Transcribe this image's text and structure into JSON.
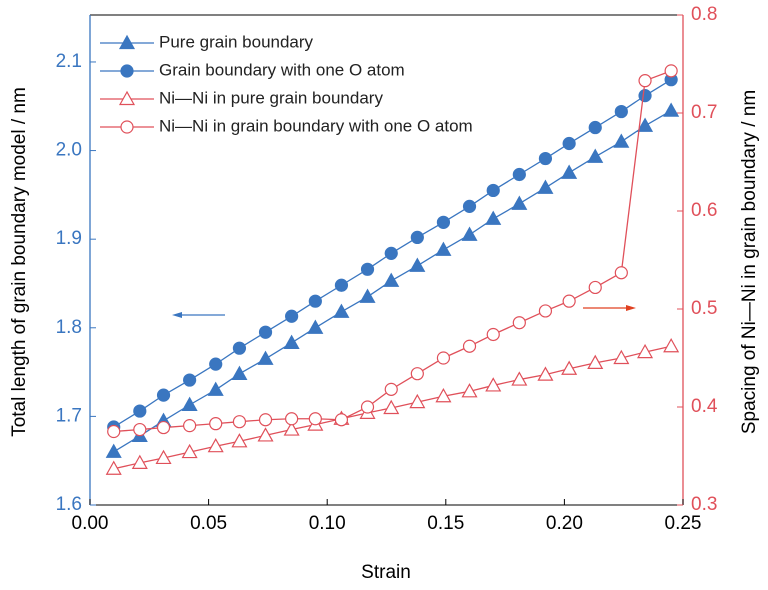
{
  "chart_data": {
    "type": "line",
    "x_label": "Strain",
    "y_label": "Total length of grain boundary model / nm",
    "y2_label": "Spacing of Ni—Ni in grain boundary / nm",
    "x": [
      0.01,
      0.021,
      0.031,
      0.042,
      0.053,
      0.063,
      0.074,
      0.085,
      0.095,
      0.106,
      0.117,
      0.127,
      0.138,
      0.149,
      0.16,
      0.17,
      0.181,
      0.192,
      0.202,
      0.213,
      0.224,
      0.234,
      0.245
    ],
    "series": [
      {
        "name": "Pure grain boundary",
        "color": "#3a76c0",
        "marker": "triangle",
        "filled": true,
        "values": [
          1.66,
          1.678,
          1.695,
          1.713,
          1.73,
          1.748,
          1.765,
          1.783,
          1.8,
          1.818,
          1.835,
          1.853,
          1.87,
          1.888,
          1.905,
          1.923,
          1.94,
          1.958,
          1.975,
          1.993,
          2.01,
          2.028,
          2.045
        ]
      },
      {
        "name": "Grain boundary with one O atom",
        "color": "#3a76c0",
        "marker": "circle",
        "filled": true,
        "values": [
          1.688,
          1.706,
          1.724,
          1.741,
          1.759,
          1.777,
          1.795,
          1.813,
          1.83,
          1.848,
          1.866,
          1.884,
          1.902,
          1.919,
          1.937,
          1.955,
          1.973,
          1.991,
          2.008,
          2.026,
          2.044,
          2.062,
          2.08
        ]
      },
      {
        "name": "Ni—Ni in pure grain boundary",
        "color": "#e0505a",
        "marker": "triangle",
        "filled": false,
        "axis": "y2",
        "values": [
          0.337,
          0.343,
          0.348,
          0.354,
          0.36,
          0.365,
          0.371,
          0.377,
          0.382,
          0.388,
          0.394,
          0.399,
          0.405,
          0.411,
          0.416,
          0.422,
          0.428,
          0.433,
          0.439,
          0.445,
          0.45,
          0.456,
          0.462
        ]
      },
      {
        "name": "Ni—Ni in grain boundary with one O atom",
        "color": "#e0505a",
        "marker": "circle",
        "filled": false,
        "axis": "y2",
        "values": [
          0.375,
          0.377,
          0.379,
          0.381,
          0.383,
          0.385,
          0.387,
          0.388,
          0.388,
          0.387,
          0.4,
          0.418,
          0.434,
          0.45,
          0.462,
          0.474,
          0.486,
          0.498,
          0.508,
          0.522,
          0.537,
          0.733,
          0.743
        ]
      }
    ],
    "xlim": [
      0,
      0.25
    ],
    "xticks": [
      {
        "value": 0,
        "label": "0.00"
      },
      {
        "value": 0.05,
        "label": "0.05"
      },
      {
        "value": 0.1,
        "label": "0.10"
      },
      {
        "value": 0.15,
        "label": "0.15"
      },
      {
        "value": 0.2,
        "label": "0.20"
      },
      {
        "value": 0.25,
        "label": "0.25"
      }
    ],
    "ylim": [
      1.6,
      2.153
    ],
    "yticks": [
      1.6,
      1.7,
      1.8,
      1.9,
      {
        "value": 2.0,
        "label": "2.0"
      },
      2.1
    ],
    "y2lim": [
      0.3,
      0.8
    ],
    "y2ticks": [
      0.3,
      0.4,
      0.5,
      0.6,
      0.7,
      0.8
    ],
    "y_color": "#3a76c0",
    "y2_color": "#e0505a"
  }
}
